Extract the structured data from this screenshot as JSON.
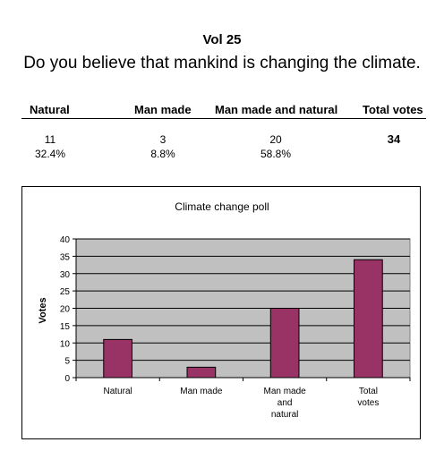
{
  "header": {
    "vol": "Vol 25",
    "question": "Do you believe that mankind is changing the climate."
  },
  "results": {
    "columns": [
      "Natural",
      "Man made",
      "Man made and natural",
      "Total votes"
    ],
    "counts": [
      "11",
      "3",
      "20",
      "34"
    ],
    "percents": [
      "32.4%",
      "8.8%",
      "58.8%",
      ""
    ]
  },
  "chart_data": {
    "type": "bar",
    "title": "Climate change poll",
    "ylabel": "Votes",
    "xlabel": "",
    "categories": [
      [
        "Natural"
      ],
      [
        "Man made"
      ],
      [
        "Man made",
        "and",
        "natural"
      ],
      [
        "Total",
        "votes"
      ]
    ],
    "values": [
      11,
      3,
      20,
      34
    ],
    "ylim": [
      0,
      40
    ],
    "yticks": [
      0,
      5,
      10,
      15,
      20,
      25,
      30,
      35,
      40
    ],
    "grid": true,
    "colors": {
      "bar": "#993366",
      "plot_bg": "#c0c0c0",
      "gridline": "#000000"
    }
  }
}
